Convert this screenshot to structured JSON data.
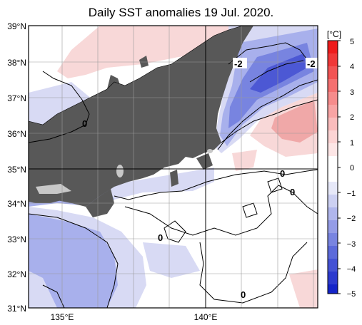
{
  "title": "Daily SST anomalies 19 Jul. 2020.",
  "lat_labels": [
    "39°N",
    "38°N",
    "37°N",
    "36°N",
    "35°N",
    "34°N",
    "33°N",
    "32°N",
    "31°N"
  ],
  "lon_labels": [
    "135°E",
    "140°E"
  ],
  "colorbar": {
    "unit": "[°C]",
    "ticks": [
      "5",
      "4",
      "3",
      "2",
      "1",
      "0",
      "−1",
      "−2",
      "−3",
      "−4",
      "−5"
    ]
  },
  "contour_labels": [
    "-2",
    "-2",
    "0",
    "0",
    "0",
    "0",
    "0"
  ],
  "colors": {
    "land": "#585858",
    "lakes": "#c8c8c8",
    "neutral": "#ffffff",
    "warm_light": "#f8d8d8",
    "warm": "#f0a8a8",
    "cool_light": "#d8daf4",
    "cool": "#a8b0ec",
    "cool_mid": "#7884e0",
    "cool_deep": "#4c58d4"
  }
}
